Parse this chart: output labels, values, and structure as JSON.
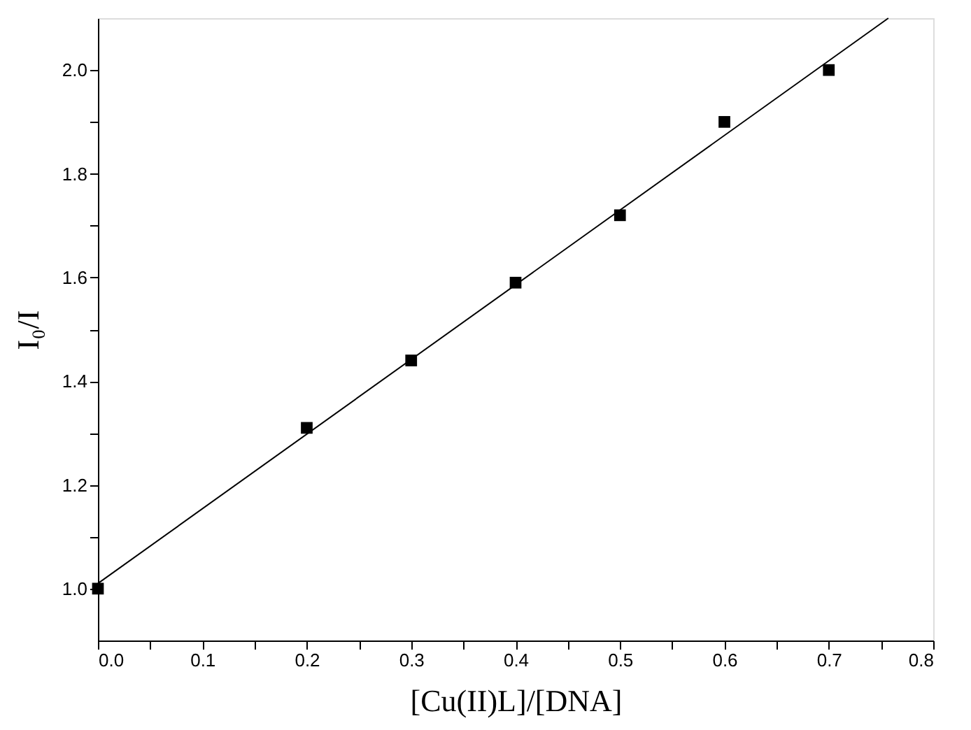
{
  "chart_data": {
    "type": "scatter",
    "xlabel": "[Cu(II)L]/[DNA]",
    "ylabel": "I₀/I",
    "xlim": [
      0,
      0.8
    ],
    "ylim": [
      0.9,
      2.1
    ],
    "xticks": [
      {
        "value": 0,
        "label": "0.0"
      },
      {
        "value": 0.05,
        "label": null
      },
      0.1,
      {
        "value": 0.15,
        "label": null
      },
      0.2,
      {
        "value": 0.25,
        "label": null
      },
      0.3,
      {
        "value": 0.35,
        "label": null
      },
      0.4,
      {
        "value": 0.45,
        "label": null
      },
      0.5,
      {
        "value": 0.55,
        "label": null
      },
      0.6,
      {
        "value": 0.65,
        "label": null
      },
      0.7,
      {
        "value": 0.75,
        "label": null
      },
      0.8
    ],
    "yticks": [
      {
        "value": 1.0,
        "label": "1.0"
      },
      {
        "value": 1.1,
        "label": null
      },
      1.2,
      {
        "value": 1.3,
        "label": null
      },
      1.4,
      {
        "value": 1.5,
        "label": null
      },
      1.6,
      {
        "value": 1.7,
        "label": null
      },
      1.8,
      {
        "value": 1.9,
        "label": null
      },
      {
        "value": 2.0,
        "label": "2.0"
      }
    ],
    "grid": false,
    "series": [
      {
        "marker": "square",
        "color": "#000000",
        "x": [
          0,
          0.2,
          0.3,
          0.4,
          0.5,
          0.6,
          0.7
        ],
        "values": [
          1.0,
          1.31,
          1.44,
          1.59,
          1.72,
          1.9,
          2.0
        ]
      },
      {
        "type": "line",
        "marker": "none",
        "color": "#000000",
        "line_style": "solid",
        "x": [
          0,
          0.757
        ],
        "values": [
          1.01,
          2.1
        ]
      }
    ]
  }
}
